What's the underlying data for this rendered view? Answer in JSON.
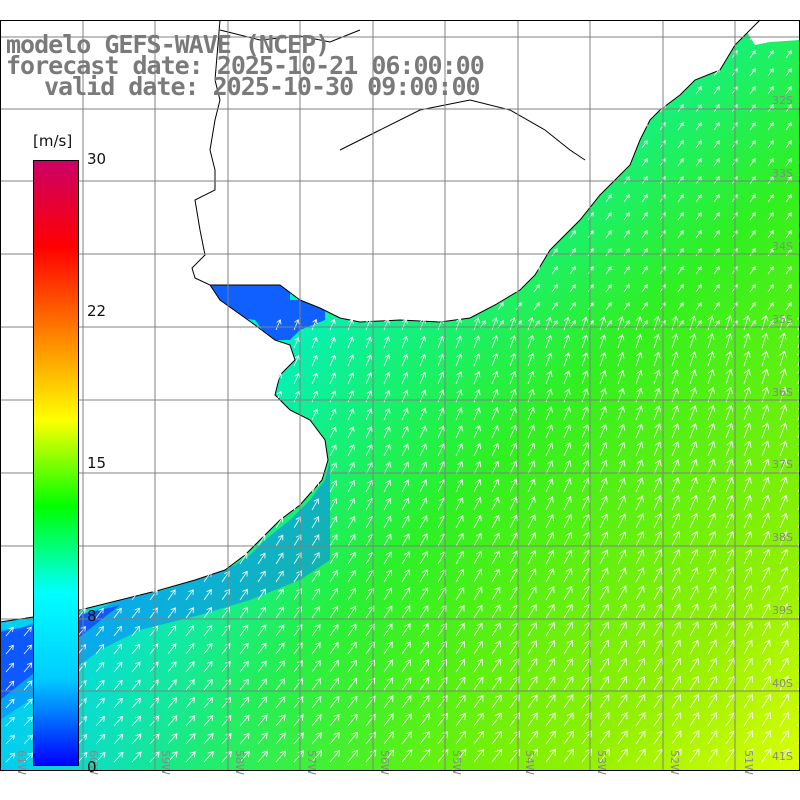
{
  "title": {
    "line1": "modelo GEFS-WAVE (NCEP)",
    "line2": "forecast date: 2025-10-21 06:00:00",
    "line3": "valid date: 2025-10-30 09:00:00"
  },
  "colorbar": {
    "unit": "[m/s]",
    "ticks": [
      "30",
      "22",
      "15",
      "8",
      "0"
    ],
    "tick_values": [
      30,
      22,
      15,
      8,
      0
    ],
    "min": 0,
    "max": 30,
    "colors": [
      "#0000ff",
      "#00ccff",
      "#00ffff",
      "#00ff00",
      "#ffff00",
      "#ff8000",
      "#ff0000",
      "#cc0066"
    ]
  },
  "map": {
    "lon_labels": [
      "61W",
      "60W",
      "59W",
      "58W",
      "57W",
      "56W",
      "55W",
      "54W",
      "53W",
      "52W",
      "51W"
    ],
    "lat_labels": [
      "32S",
      "33S",
      "34S",
      "35S",
      "36S",
      "37S",
      "38S",
      "39S",
      "40S",
      "41S"
    ],
    "land_color": "#ffffff",
    "grid_color": "#808080",
    "coast_color": "#000000",
    "arrow_color": "#ffffff"
  }
}
